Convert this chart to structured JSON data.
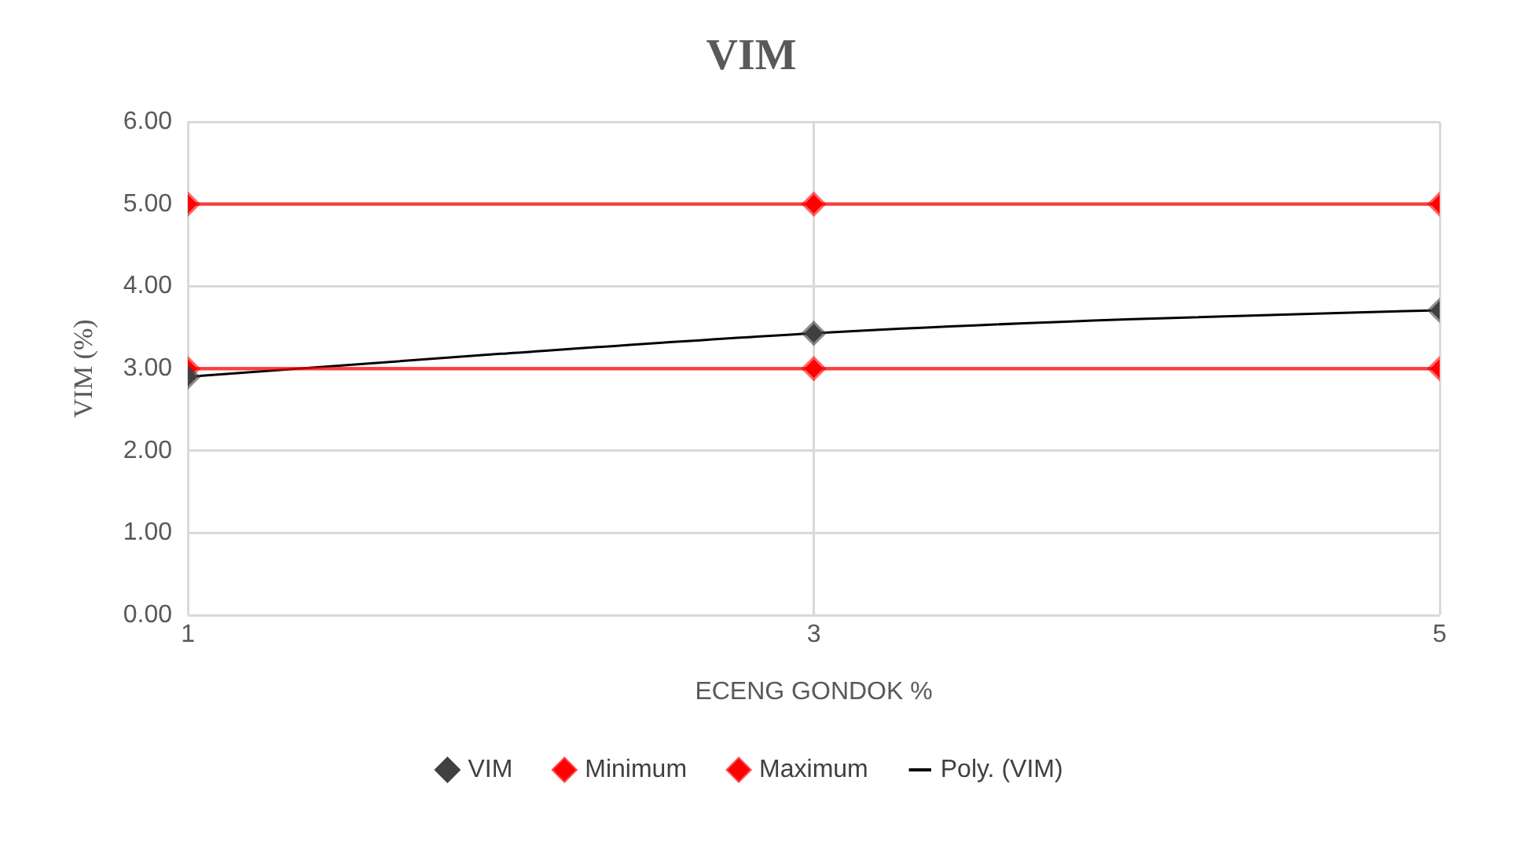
{
  "chart_data": {
    "type": "line",
    "title": "VIM",
    "xlabel": "ECENG GONDOK %",
    "ylabel": "VIM (%)",
    "xlim": [
      1,
      5
    ],
    "xticks": [
      1,
      3,
      5
    ],
    "ylim": [
      0,
      6
    ],
    "yticks": [
      {
        "value": 0,
        "label": "0.00"
      },
      {
        "value": 1,
        "label": "1.00"
      },
      {
        "value": 2,
        "label": "2.00"
      },
      {
        "value": 3,
        "label": "3.00"
      },
      {
        "value": 4,
        "label": "4.00"
      },
      {
        "value": 5,
        "label": "5.00"
      },
      {
        "value": 6,
        "label": "6.00"
      }
    ],
    "x": [
      1,
      3,
      5
    ],
    "grid": true,
    "legend": "bottom",
    "marker": "diamond",
    "series": [
      {
        "name": "VIM",
        "type": "scatter",
        "color": "#404040",
        "values": [
          2.9,
          3.43,
          3.71
        ]
      },
      {
        "name": "Minimum",
        "color": "#ff0000",
        "values": [
          3,
          3,
          3
        ]
      },
      {
        "name": "Maximum",
        "color": "#ff0000",
        "values": [
          5,
          5,
          5
        ]
      },
      {
        "name": "Poly. (VIM)",
        "marker": "none",
        "color": "#000000",
        "x": [
          1,
          2,
          3,
          4,
          5
        ],
        "values": [
          2.9,
          3.18,
          3.43,
          3.6,
          3.71
        ]
      }
    ]
  }
}
